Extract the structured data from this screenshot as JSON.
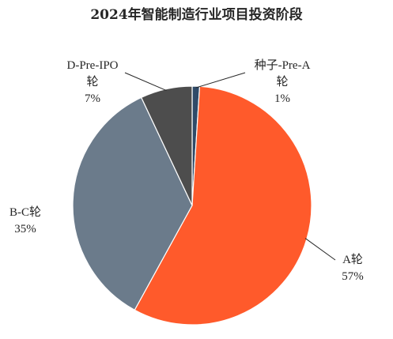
{
  "chart_data": {
    "type": "pie",
    "title": "2024年智能制造行业项目投资阶段",
    "slices": [
      {
        "label_lines": [
          "种子-Pre-A",
          "轮"
        ],
        "value": 1,
        "value_label": "1%",
        "color": "#2f4a68"
      },
      {
        "label_lines": [
          "A轮"
        ],
        "value": 57,
        "value_label": "57%",
        "color": "#ff5a2b"
      },
      {
        "label_lines": [
          "B-C轮"
        ],
        "value": 35,
        "value_label": "35%",
        "color": "#6b7b8b"
      },
      {
        "label_lines": [
          "D-Pre-IPO",
          "轮"
        ],
        "value": 7,
        "value_label": "7%",
        "color": "#4d4d4d"
      }
    ],
    "legend": "none",
    "grid": false
  }
}
